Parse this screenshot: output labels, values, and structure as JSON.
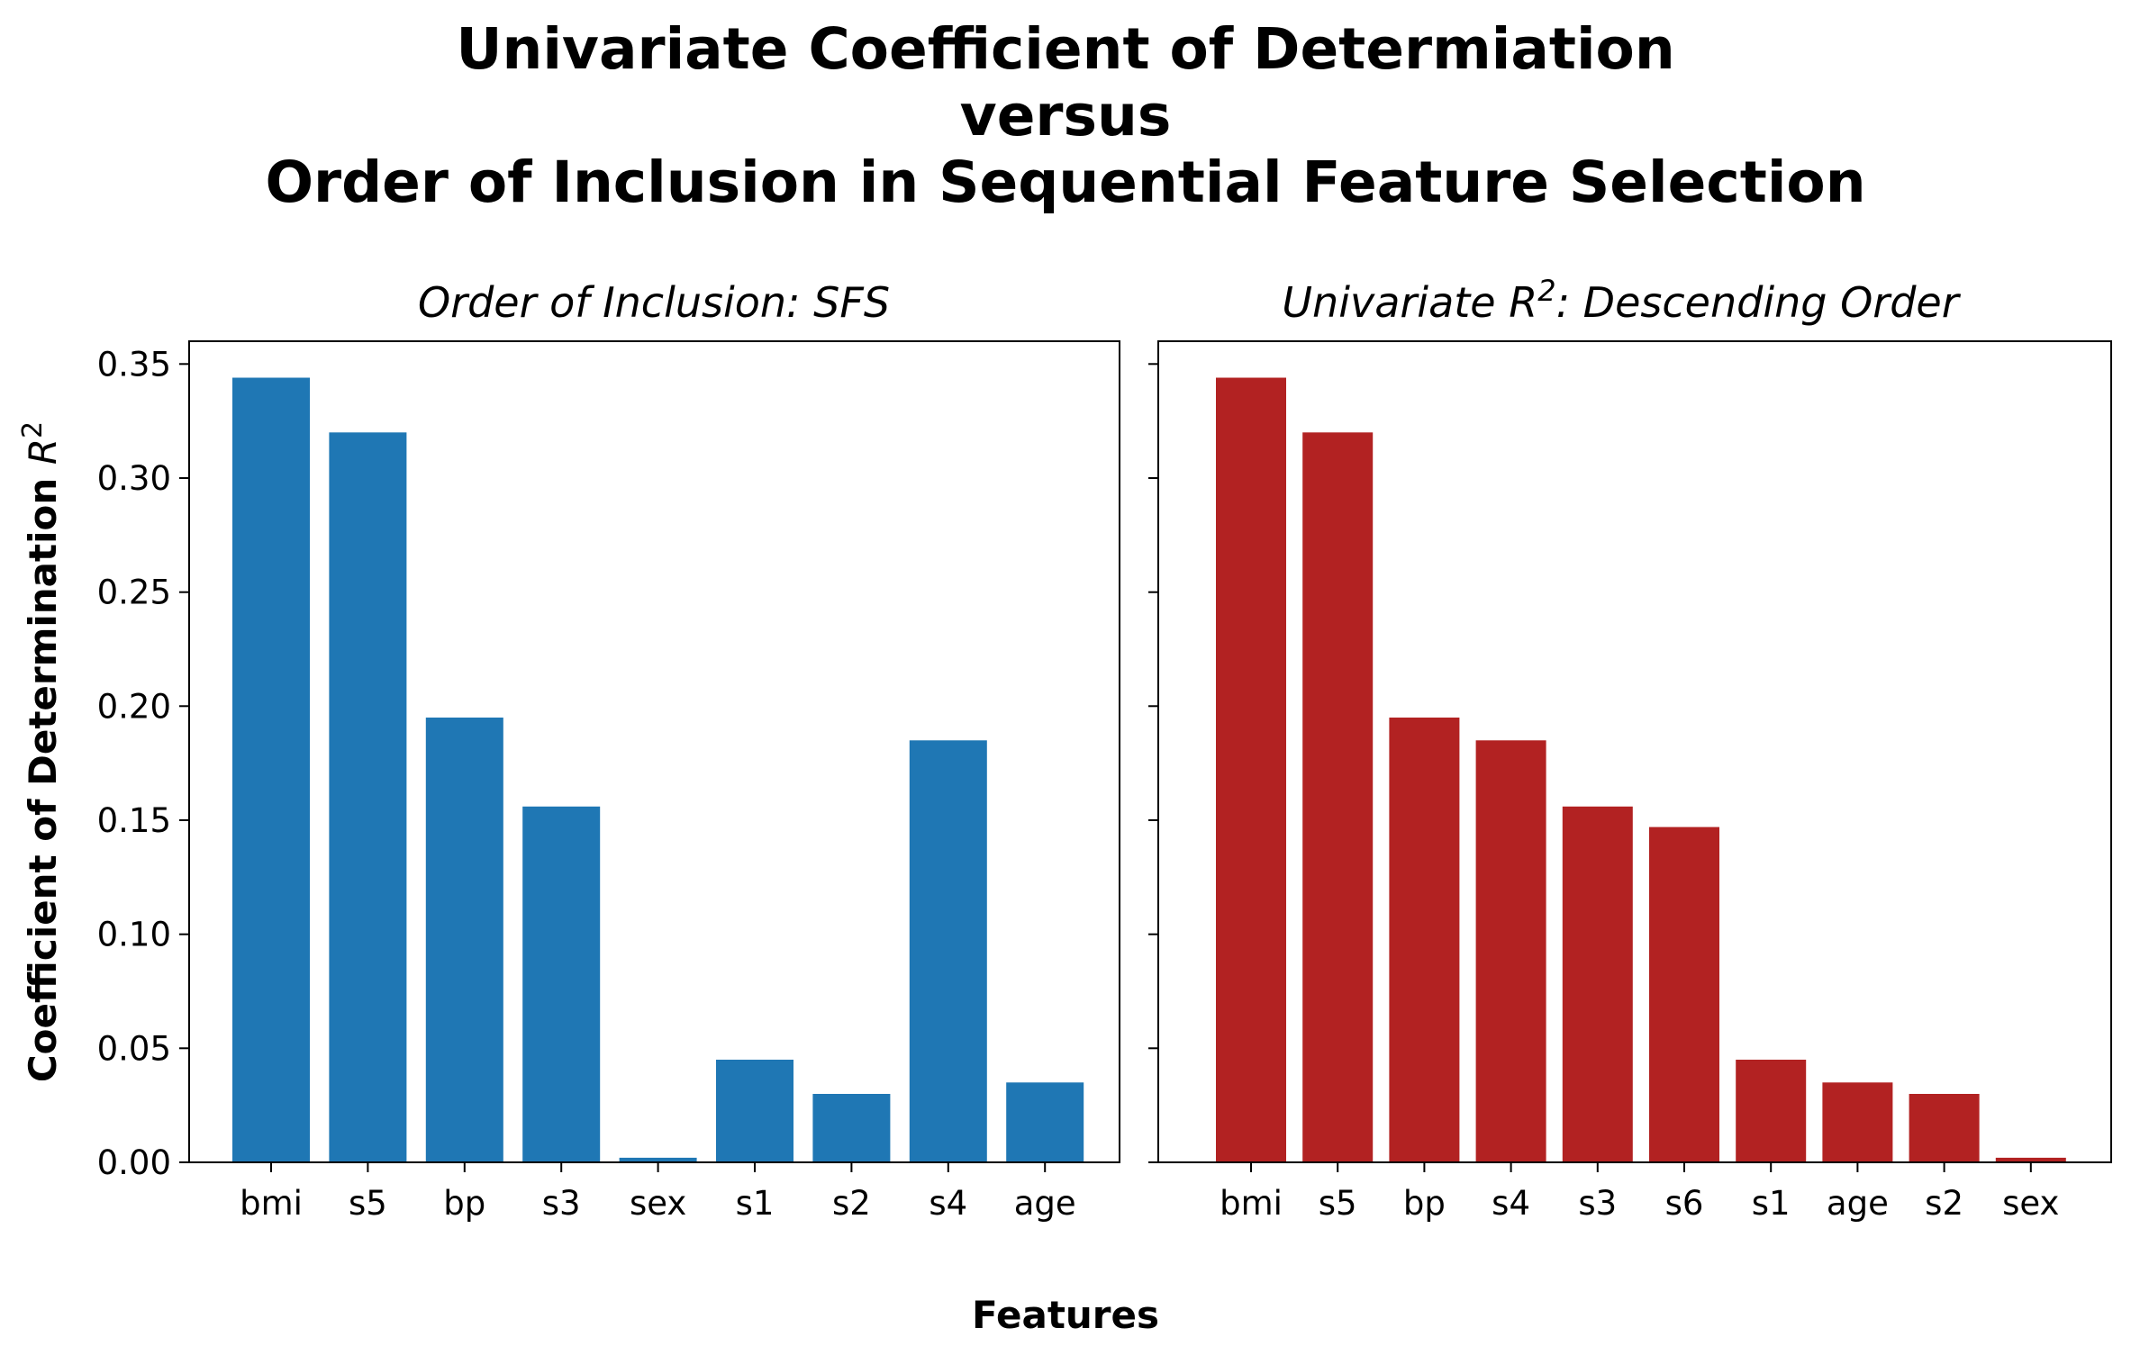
{
  "figure": {
    "title_lines": [
      "Univariate Coefficient of Determiation",
      "versus",
      "Order of Inclusion in Sequential Feature Selection"
    ],
    "xlabel": "Features",
    "ylabel_text": "Coefficient of Determination ",
    "ylabel_symbol": "R",
    "ylabel_exponent": "2"
  },
  "chart_data": [
    {
      "type": "bar",
      "title": "Order of Inclusion: SFS",
      "categories": [
        "bmi",
        "s5",
        "bp",
        "s3",
        "sex",
        "s1",
        "s2",
        "s4",
        "age"
      ],
      "values": [
        0.344,
        0.32,
        0.195,
        0.156,
        0.002,
        0.045,
        0.03,
        0.185,
        0.035
      ],
      "ylim": [
        0,
        0.36
      ],
      "yticks": [
        "0.00",
        "0.05",
        "0.10",
        "0.15",
        "0.20",
        "0.25",
        "0.30",
        "0.35"
      ],
      "color": "#1f77b4"
    },
    {
      "type": "bar",
      "title_prefix": "Univariate ",
      "title_symbol": "R",
      "title_exponent": "2",
      "title_suffix": ": Descending Order",
      "categories": [
        "bmi",
        "s5",
        "bp",
        "s4",
        "s3",
        "s6",
        "s1",
        "age",
        "s2",
        "sex"
      ],
      "values": [
        0.344,
        0.32,
        0.195,
        0.185,
        0.156,
        0.147,
        0.045,
        0.035,
        0.03,
        0.002
      ],
      "ylim": [
        0,
        0.36
      ],
      "color": "#b22222"
    }
  ]
}
